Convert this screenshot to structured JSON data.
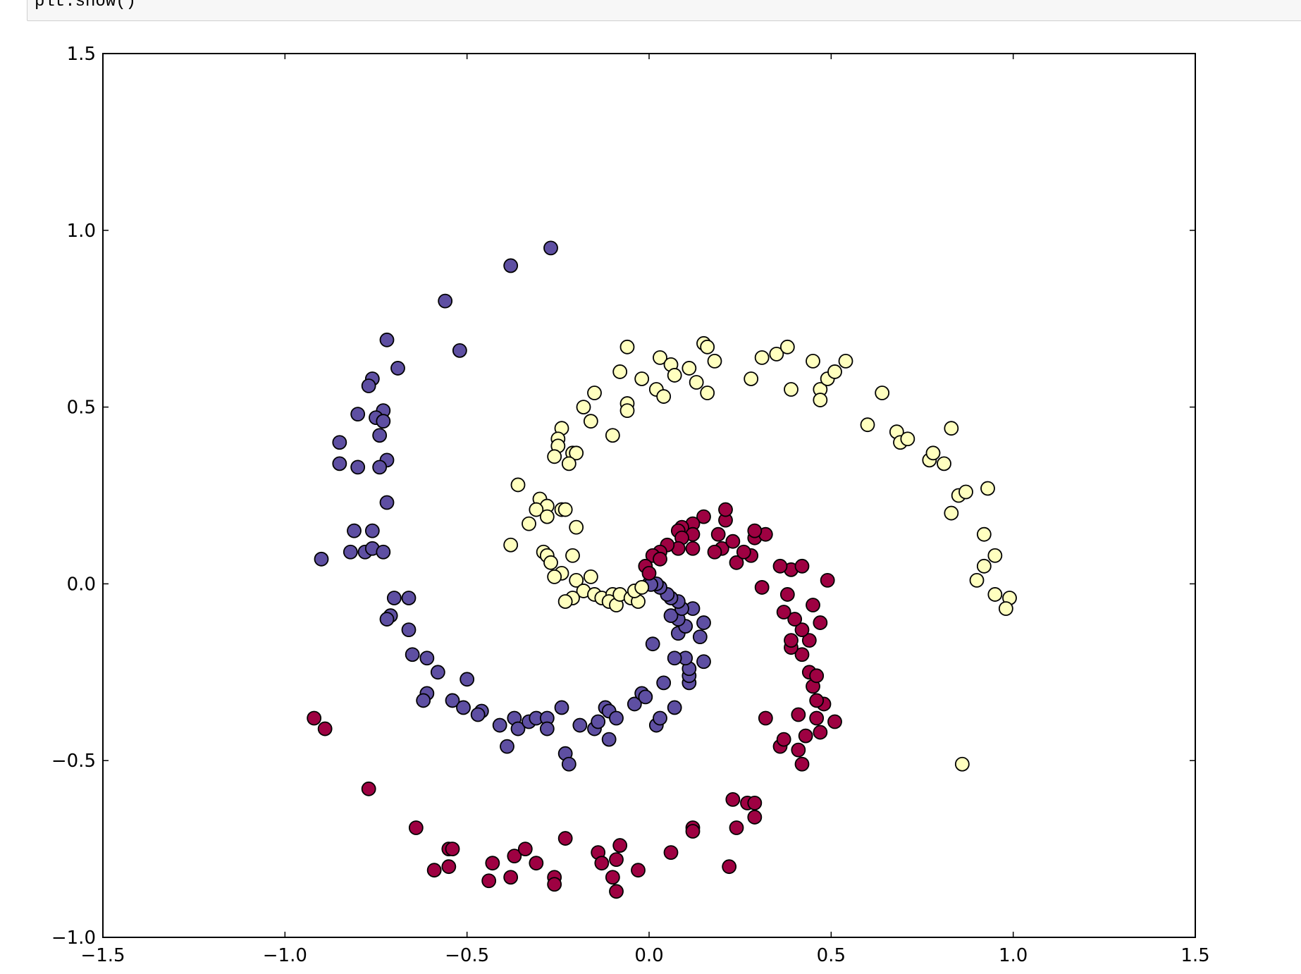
{
  "code": {
    "text": "plt.show()"
  },
  "chart_data": {
    "type": "scatter",
    "xlim": [
      -1.5,
      1.5
    ],
    "ylim": [
      -1.0,
      1.5
    ],
    "xticks": [
      {
        "value": -1.5,
        "label": "−1.5"
      },
      {
        "value": -1.0,
        "label": "−1.0"
      },
      {
        "value": -0.5,
        "label": "−0.5"
      },
      {
        "value": 0.0,
        "label": "0.0"
      },
      {
        "value": 0.5,
        "label": "0.5"
      },
      {
        "value": 1.0,
        "label": "1.0"
      },
      {
        "value": 1.5,
        "label": "1.5"
      }
    ],
    "yticks": [
      {
        "value": -1.0,
        "label": "−1.0"
      },
      {
        "value": -0.5,
        "label": "−0.5"
      },
      {
        "value": 0.0,
        "label": "0.0"
      },
      {
        "value": 0.5,
        "label": "0.5"
      },
      {
        "value": 1.0,
        "label": "1.0"
      },
      {
        "value": 1.5,
        "label": "1.5"
      }
    ],
    "grid": false,
    "series": [
      {
        "color": "#5e4fa2",
        "x": [
          -0.27,
          -0.38,
          -0.56,
          -0.52,
          -0.72,
          -0.69,
          -0.76,
          -0.77,
          -0.8,
          -0.73,
          -0.75,
          -0.73,
          -0.74,
          -0.85,
          -0.85,
          -0.8,
          -0.72,
          -0.74,
          -0.72,
          -0.81,
          -0.76,
          -0.9,
          -0.82,
          -0.78,
          -0.76,
          -0.73,
          -0.7,
          -0.66,
          -0.71,
          -0.72,
          -0.66,
          -0.65,
          -0.61,
          -0.58,
          -0.5,
          -0.61,
          -0.62,
          -0.54,
          -0.51,
          -0.46,
          -0.47,
          -0.41,
          -0.37,
          -0.36,
          -0.33,
          -0.39,
          -0.31,
          -0.28,
          -0.28,
          -0.24,
          -0.19,
          -0.23,
          -0.22,
          -0.15,
          -0.14,
          -0.12,
          -0.11,
          -0.11,
          -0.09,
          -0.04,
          -0.02,
          -0.01,
          0.02,
          0.03,
          0.07,
          0.04,
          0.11,
          0.11,
          0.11,
          0.1,
          0.07,
          0.15,
          0.01,
          0.14,
          0.08,
          0.1,
          0.15,
          0.08,
          0.06,
          0.12,
          0.09,
          0.08,
          0.06,
          0.05,
          0.03,
          0.02,
          0.0,
          0.005
        ],
        "values": [
          0.95,
          0.9,
          0.8,
          0.66,
          0.69,
          0.61,
          0.58,
          0.56,
          0.48,
          0.49,
          0.47,
          0.46,
          0.42,
          0.4,
          0.34,
          0.33,
          0.35,
          0.33,
          0.23,
          0.15,
          0.15,
          0.07,
          0.09,
          0.09,
          0.1,
          0.09,
          -0.04,
          -0.04,
          -0.09,
          -0.1,
          -0.13,
          -0.2,
          -0.21,
          -0.25,
          -0.27,
          -0.31,
          -0.33,
          -0.33,
          -0.35,
          -0.36,
          -0.37,
          -0.4,
          -0.38,
          -0.41,
          -0.39,
          -0.46,
          -0.38,
          -0.38,
          -0.41,
          -0.35,
          -0.4,
          -0.48,
          -0.51,
          -0.41,
          -0.39,
          -0.35,
          -0.36,
          -0.44,
          -0.38,
          -0.34,
          -0.31,
          -0.32,
          -0.4,
          -0.38,
          -0.35,
          -0.28,
          -0.28,
          -0.26,
          -0.24,
          -0.21,
          -0.21,
          -0.22,
          -0.17,
          -0.15,
          -0.14,
          -0.12,
          -0.11,
          -0.1,
          -0.09,
          -0.07,
          -0.07,
          -0.05,
          -0.04,
          -0.03,
          -0.01,
          0.0,
          0.0,
          -0.002
        ]
      },
      {
        "color": "#9e0142",
        "x": [
          -0.92,
          -0.89,
          -0.77,
          -0.64,
          -0.59,
          -0.55,
          -0.55,
          -0.54,
          -0.44,
          -0.43,
          -0.38,
          -0.37,
          -0.34,
          -0.31,
          -0.26,
          -0.26,
          -0.23,
          -0.14,
          -0.13,
          -0.09,
          -0.08,
          -0.1,
          -0.09,
          -0.03,
          0.06,
          0.12,
          0.12,
          0.22,
          0.23,
          0.24,
          0.27,
          0.29,
          0.29,
          0.42,
          0.41,
          0.36,
          0.37,
          0.43,
          0.47,
          0.32,
          0.41,
          0.46,
          0.51,
          0.48,
          0.46,
          0.45,
          0.44,
          0.46,
          0.42,
          0.39,
          0.39,
          0.44,
          0.42,
          0.47,
          0.4,
          0.37,
          0.45,
          0.38,
          0.31,
          0.49,
          0.39,
          0.42,
          0.36,
          0.24,
          0.28,
          0.26,
          0.2,
          0.18,
          0.23,
          0.29,
          0.32,
          0.29,
          0.19,
          0.21,
          0.21,
          0.15,
          0.12,
          0.09,
          0.08,
          0.12,
          0.09,
          0.12,
          0.08,
          0.05,
          0.03,
          0.01,
          0.03,
          -0.01,
          0.0
        ],
        "values": [
          -0.38,
          -0.41,
          -0.58,
          -0.69,
          -0.81,
          -0.8,
          -0.75,
          -0.75,
          -0.84,
          -0.79,
          -0.83,
          -0.77,
          -0.75,
          -0.79,
          -0.83,
          -0.85,
          -0.72,
          -0.76,
          -0.79,
          -0.78,
          -0.74,
          -0.83,
          -0.87,
          -0.81,
          -0.76,
          -0.69,
          -0.7,
          -0.8,
          -0.61,
          -0.69,
          -0.62,
          -0.62,
          -0.66,
          -0.51,
          -0.47,
          -0.46,
          -0.44,
          -0.43,
          -0.42,
          -0.38,
          -0.37,
          -0.38,
          -0.39,
          -0.34,
          -0.33,
          -0.29,
          -0.25,
          -0.26,
          -0.2,
          -0.18,
          -0.16,
          -0.16,
          -0.13,
          -0.11,
          -0.1,
          -0.08,
          -0.06,
          -0.03,
          -0.01,
          0.01,
          0.04,
          0.05,
          0.05,
          0.06,
          0.08,
          0.09,
          0.1,
          0.09,
          0.12,
          0.13,
          0.14,
          0.15,
          0.14,
          0.18,
          0.21,
          0.19,
          0.17,
          0.16,
          0.15,
          0.14,
          0.13,
          0.1,
          0.1,
          0.11,
          0.09,
          0.08,
          0.07,
          0.05,
          0.03
        ]
      },
      {
        "color": "#ffffbf",
        "x": [
          -0.06,
          -0.08,
          -0.02,
          -0.15,
          -0.18,
          -0.16,
          -0.06,
          -0.06,
          -0.1,
          -0.24,
          -0.25,
          -0.25,
          -0.21,
          -0.2,
          -0.26,
          -0.22,
          -0.36,
          -0.3,
          -0.28,
          -0.31,
          -0.28,
          -0.24,
          -0.23,
          -0.33,
          -0.2,
          -0.38,
          -0.29,
          -0.28,
          -0.27,
          -0.21,
          -0.24,
          -0.26,
          -0.2,
          -0.16,
          -0.18,
          -0.21,
          -0.23,
          -0.15,
          -0.13,
          -0.1,
          -0.11,
          -0.09,
          -0.08,
          -0.05,
          -0.03,
          -0.04,
          -0.02,
          0.03,
          0.06,
          0.07,
          0.02,
          0.04,
          0.11,
          0.13,
          0.16,
          0.15,
          0.16,
          0.18,
          0.28,
          0.31,
          0.35,
          0.38,
          0.39,
          0.45,
          0.47,
          0.47,
          0.49,
          0.51,
          0.54,
          0.6,
          0.64,
          0.68,
          0.69,
          0.71,
          0.77,
          0.78,
          0.81,
          0.83,
          0.85,
          0.87,
          0.93,
          0.83,
          0.92,
          0.95,
          0.92,
          0.9,
          0.95,
          0.99,
          0.98,
          0.86
        ],
        "values": [
          0.67,
          0.6,
          0.58,
          0.54,
          0.5,
          0.46,
          0.51,
          0.49,
          0.42,
          0.44,
          0.41,
          0.39,
          0.37,
          0.37,
          0.36,
          0.34,
          0.28,
          0.24,
          0.22,
          0.21,
          0.19,
          0.21,
          0.21,
          0.17,
          0.16,
          0.11,
          0.09,
          0.08,
          0.06,
          0.08,
          0.03,
          0.02,
          0.01,
          0.02,
          -0.02,
          -0.04,
          -0.05,
          -0.03,
          -0.04,
          -0.03,
          -0.05,
          -0.06,
          -0.03,
          -0.04,
          -0.05,
          -0.02,
          -0.01,
          0.64,
          0.62,
          0.59,
          0.55,
          0.53,
          0.61,
          0.57,
          0.54,
          0.68,
          0.67,
          0.63,
          0.58,
          0.64,
          0.65,
          0.67,
          0.55,
          0.63,
          0.55,
          0.52,
          0.58,
          0.6,
          0.63,
          0.45,
          0.54,
          0.43,
          0.4,
          0.41,
          0.35,
          0.37,
          0.34,
          0.44,
          0.25,
          0.26,
          0.27,
          0.2,
          0.14,
          0.08,
          0.05,
          0.01,
          -0.03,
          -0.04,
          -0.07,
          -0.51
        ]
      }
    ]
  }
}
